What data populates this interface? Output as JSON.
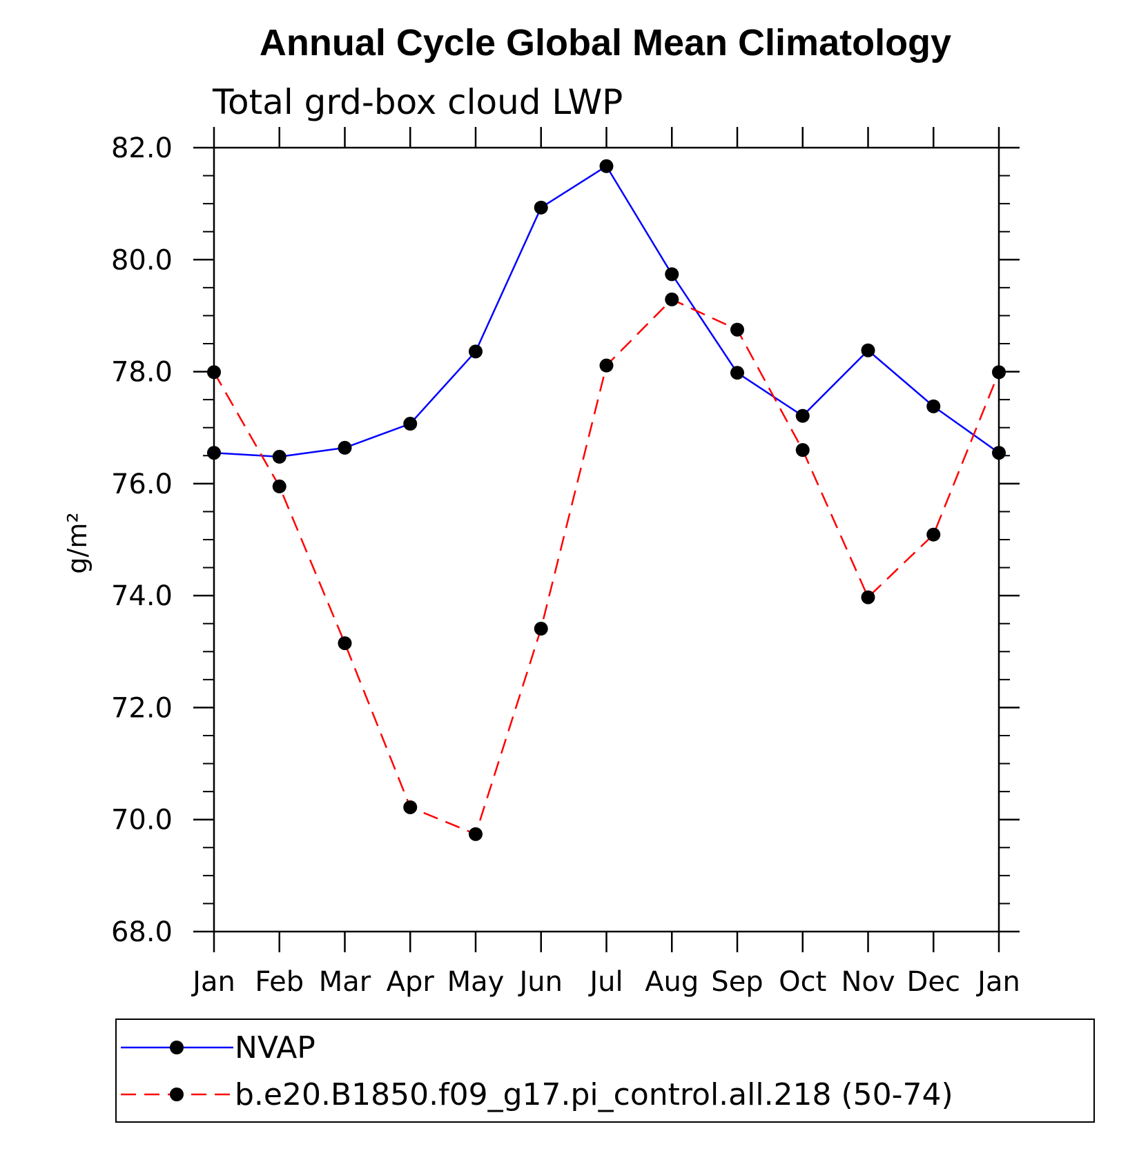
{
  "chart_data": {
    "type": "line",
    "title": "Annual Cycle Global Mean Climatology",
    "subtitle": "Total grd-box cloud LWP",
    "xlabel": "",
    "ylabel": "g/m²",
    "categories": [
      "Jan",
      "Feb",
      "Mar",
      "Apr",
      "May",
      "Jun",
      "Jul",
      "Aug",
      "Sep",
      "Oct",
      "Nov",
      "Dec",
      "Jan"
    ],
    "ylim": [
      68.0,
      82.0
    ],
    "yticks": [
      "68.0",
      "70.0",
      "72.0",
      "74.0",
      "76.0",
      "78.0",
      "80.0",
      "82.0"
    ],
    "y_minor_step": 0.5,
    "grid": false,
    "legend_position": "bottom",
    "series": [
      {
        "name": "NVAP",
        "color": "#0000ff",
        "line_style": "solid",
        "marker": "filled-circle",
        "values": [
          76.55,
          76.48,
          76.64,
          77.07,
          78.36,
          80.93,
          81.67,
          79.74,
          77.98,
          77.21,
          78.38,
          77.38,
          76.55
        ]
      },
      {
        "name": "b.e20.B1850.f09_g17.pi_control.all.218 (50-74)",
        "color": "#ff0000",
        "line_style": "dashed",
        "marker": "filled-circle",
        "values": [
          77.99,
          75.95,
          73.15,
          70.22,
          69.74,
          73.41,
          78.11,
          79.29,
          78.75,
          76.6,
          73.97,
          75.09,
          77.99
        ]
      }
    ]
  }
}
